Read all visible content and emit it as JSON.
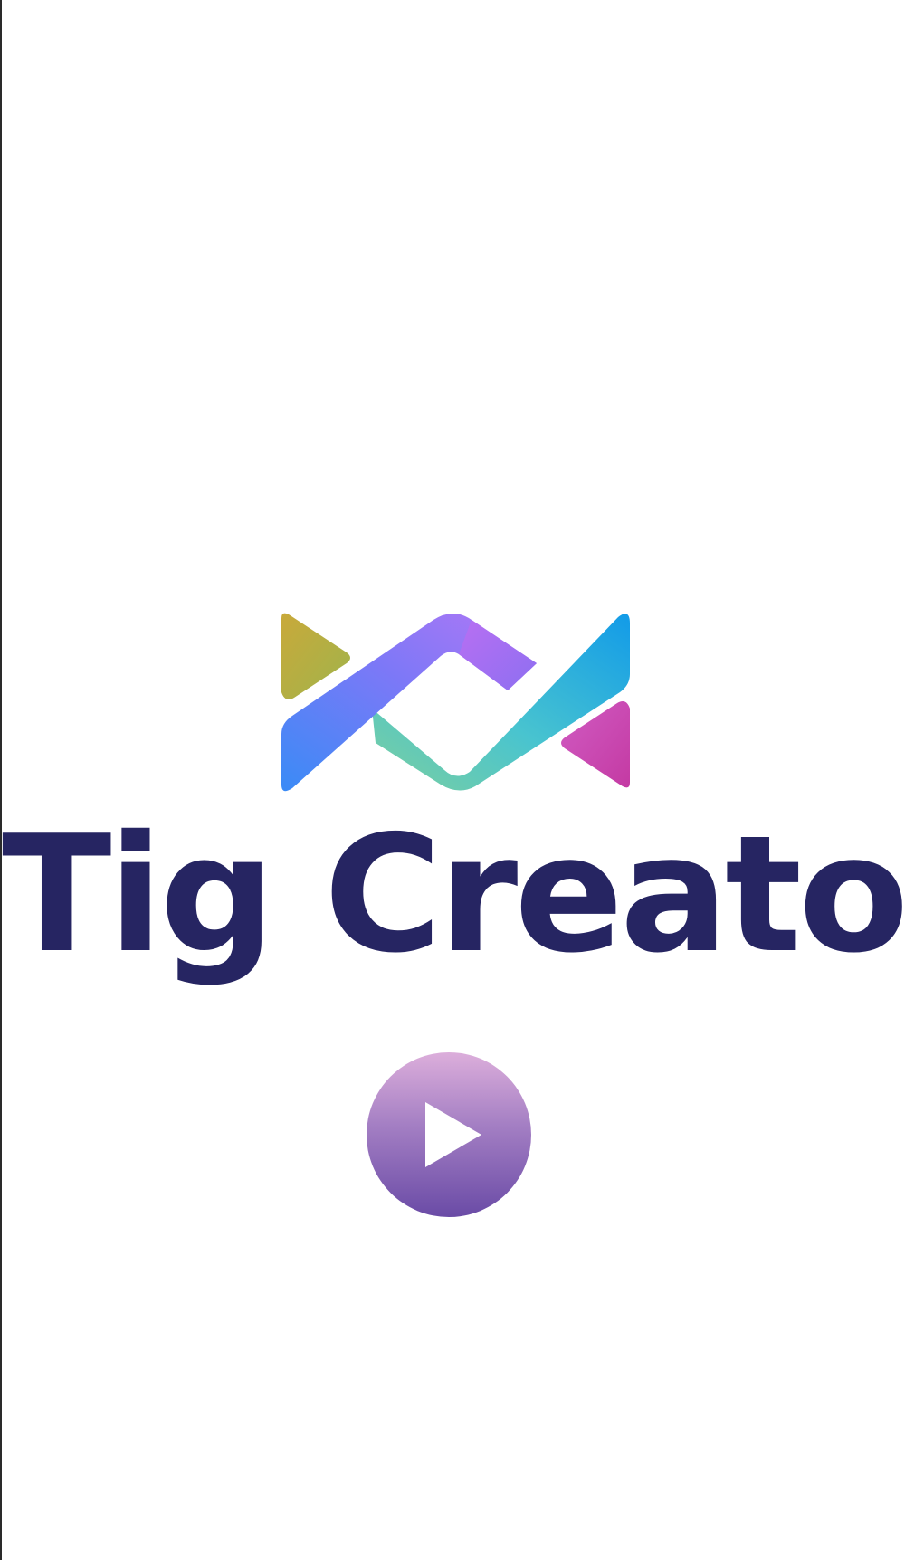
{
  "app": {
    "brand_name": "Tig Creator"
  },
  "logo": {
    "icon": "tig-creator-logo-mark",
    "colors": {
      "gold": "#c9a93a",
      "purple": "#b277f5",
      "blue": "#3a8bf6",
      "teal": "#49c4cf",
      "green": "#7ccfa0",
      "sky": "#129be8",
      "magenta": "#c43aa3"
    }
  },
  "brand_color": "#262562",
  "play_button": {
    "icon": "play-icon",
    "gradient_top": "#dcaedb",
    "gradient_bottom": "#6a4ba6"
  }
}
